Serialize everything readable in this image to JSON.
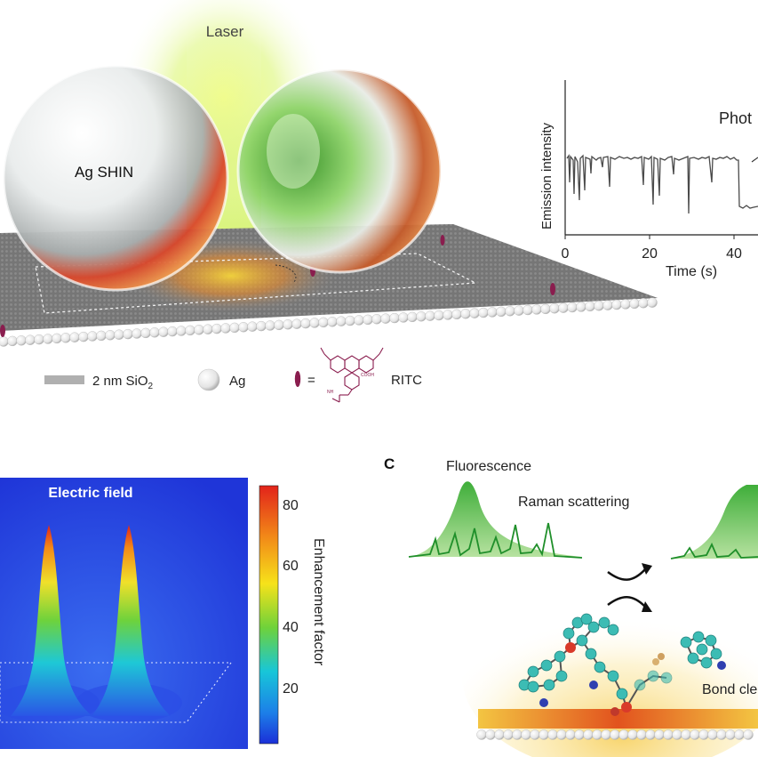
{
  "panel_a": {
    "laser_label": "Laser",
    "particle_label": "Ag SHIN",
    "legend": {
      "sio2_text": "2 nm SiO",
      "sio2_subscript": "2",
      "ag_text": "Ag",
      "equals": "=",
      "ritc_text": "RITC",
      "cooh_label": "COOH",
      "nh_label": "NH"
    }
  },
  "emission_plot": {
    "ylabel": "Emission intensity",
    "xlabel": "Time (s)",
    "xticks": [
      "0",
      "20",
      "40"
    ],
    "cut_label": "Phot"
  },
  "panel_b": {
    "title": "Electric field",
    "colorbar_label": "Enhancement factor",
    "colorbar_ticks": [
      "80",
      "60",
      "40",
      "20"
    ]
  },
  "panel_c": {
    "panel_letter": "C",
    "fluorescence_label": "Fluorescence",
    "raman_label": "Raman scattering",
    "bond_label": "Bond cle"
  },
  "colors": {
    "green_peak": "#3fae3a",
    "raman_line": "#1f8f2a",
    "dye": "#8a1d4e",
    "colorbar_top": "#e2231a",
    "colorbar_bottom": "#1b2fd8",
    "field_background": "#1f3fe0"
  }
}
